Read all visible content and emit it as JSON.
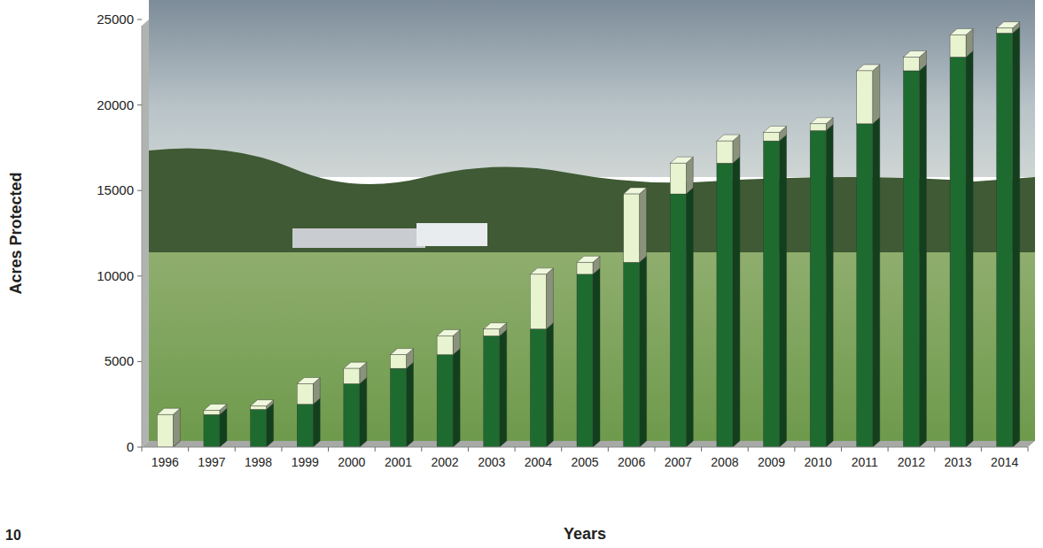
{
  "chart_data": {
    "type": "bar",
    "stacked": true,
    "grid": false,
    "x_label": "Years",
    "y_label": "Acres Protected",
    "annotations": [
      "10"
    ],
    "categories": [
      "1996",
      "1997",
      "1998",
      "1999",
      "2000",
      "2001",
      "2002",
      "2003",
      "2004",
      "2005",
      "2006",
      "2007",
      "2008",
      "2009",
      "2010",
      "2011",
      "2012",
      "2013",
      "2014"
    ],
    "series": [
      {
        "color": "#1e6b30",
        "values": [
          0,
          1900,
          2200,
          2500,
          3700,
          4600,
          5400,
          6500,
          6900,
          10100,
          10800,
          14800,
          16600,
          17900,
          18500,
          18900,
          22000,
          22800,
          24200
        ]
      },
      {
        "color": "#e8f3cf",
        "values": [
          1900,
          250,
          200,
          1200,
          900,
          800,
          1100,
          400,
          3200,
          700,
          4000,
          1800,
          1300,
          500,
          400,
          3100,
          800,
          1300,
          300
        ]
      }
    ],
    "ylim": [
      0,
      25000
    ],
    "yticks": [
      0,
      5000,
      10000,
      15000,
      20000,
      25000
    ]
  }
}
